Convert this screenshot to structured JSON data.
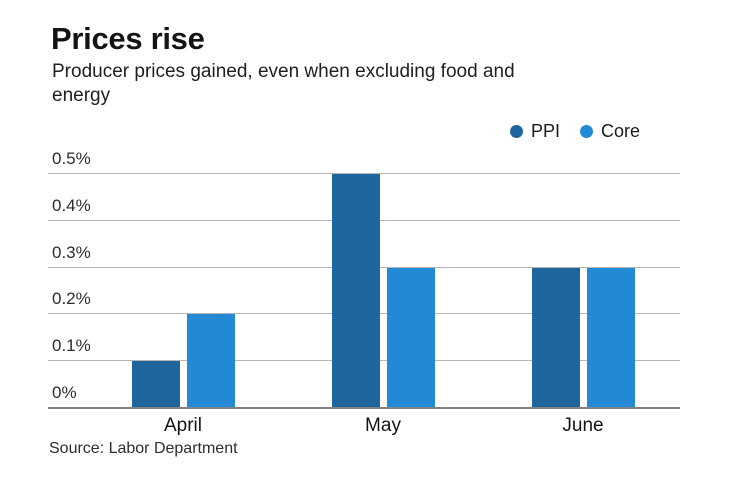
{
  "chart_data": {
    "type": "bar",
    "title": "Prices rise",
    "subtitle": "Producer prices gained, even when excluding food and energy",
    "source": "Source: Labor Department",
    "categories": [
      "April",
      "May",
      "June"
    ],
    "series": [
      {
        "name": "PPI",
        "color": "#1f669e",
        "values": [
          0.1,
          0.5,
          0.3
        ]
      },
      {
        "name": "Core",
        "color": "#2289d4",
        "values": [
          0.2,
          0.3,
          0.3
        ]
      }
    ],
    "ylim": [
      0,
      0.5
    ],
    "yticks": {
      "values": [
        0,
        0.1,
        0.2,
        0.3,
        0.4,
        0.5
      ],
      "labels": [
        "0%",
        "0.1%",
        "0.2%",
        "0.3%",
        "0.4%",
        "0.5%"
      ]
    },
    "legend_position": "top-right",
    "grid": "horizontal"
  }
}
